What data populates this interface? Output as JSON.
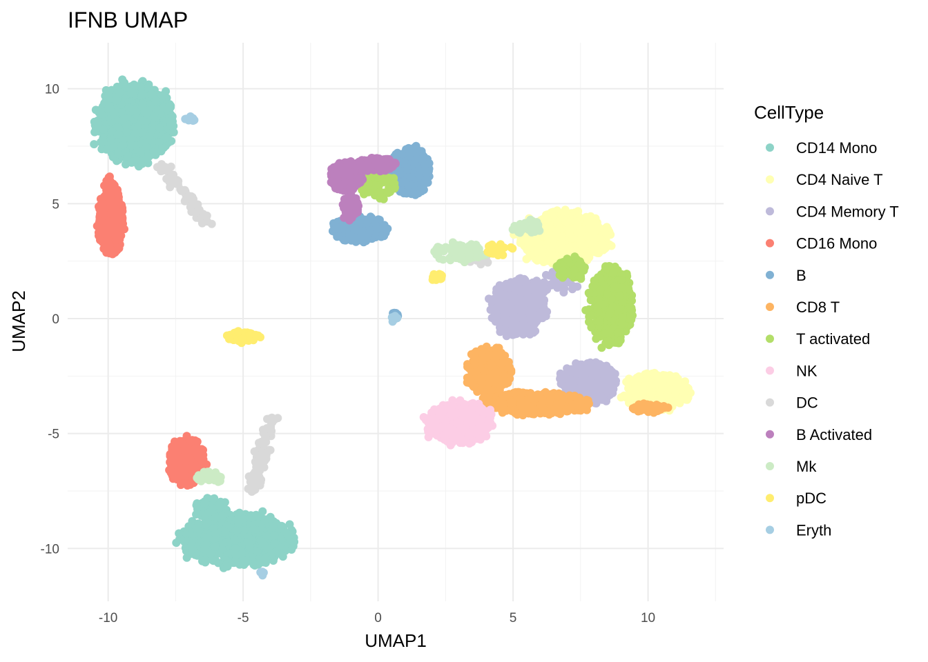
{
  "chart_data": {
    "type": "scatter",
    "title": "IFNB UMAP",
    "xlabel": "UMAP1",
    "ylabel": "UMAP2",
    "xlim": [
      -11.5,
      12.8
    ],
    "ylim": [
      -12.3,
      12.0
    ],
    "x_ticks": [
      -10,
      -5,
      0,
      5,
      10
    ],
    "y_ticks": [
      -10,
      -5,
      0,
      5,
      10
    ],
    "x_tick_labels": [
      "-10",
      "-5",
      "0",
      "5",
      "10"
    ],
    "y_tick_labels": [
      "-10",
      "-5",
      "0",
      "5",
      "10"
    ],
    "grid": true,
    "legend": {
      "title": "CellType",
      "placement": "right"
    },
    "series": [
      {
        "name": "CD14 Mono",
        "color": "#8DD3C7",
        "clusters": [
          {
            "cx": -9.0,
            "cy": 8.5,
            "rx": 1.4,
            "ry": 1.7,
            "n": 900
          },
          {
            "cx": -5.2,
            "cy": -9.6,
            "rx": 2.0,
            "ry": 1.1,
            "n": 900
          },
          {
            "cx": -6.2,
            "cy": -8.3,
            "rx": 0.6,
            "ry": 0.5,
            "n": 60
          }
        ]
      },
      {
        "name": "CD4 Naive T",
        "color": "#FFFFB3",
        "clusters": [
          {
            "cx": 6.9,
            "cy": 3.5,
            "rx": 1.6,
            "ry": 1.1,
            "n": 600
          },
          {
            "cx": 10.3,
            "cy": -3.2,
            "rx": 1.2,
            "ry": 0.8,
            "n": 420
          },
          {
            "cx": -0.5,
            "cy": 3.6,
            "rx": 0.2,
            "ry": 0.2,
            "n": 10
          }
        ]
      },
      {
        "name": "CD4 Memory T",
        "color": "#BEBADA",
        "clusters": [
          {
            "cx": 5.2,
            "cy": 0.5,
            "rx": 1.0,
            "ry": 1.2,
            "n": 460
          },
          {
            "cx": 7.8,
            "cy": -2.8,
            "rx": 1.0,
            "ry": 0.9,
            "n": 420
          },
          {
            "cx": 6.4,
            "cy": 1.5,
            "rx": 0.9,
            "ry": 0.5,
            "n": 40
          }
        ]
      },
      {
        "name": "CD16 Mono",
        "color": "#FB8072",
        "clusters": [
          {
            "cx": -9.9,
            "cy": 4.3,
            "rx": 0.45,
            "ry": 1.5,
            "n": 380
          },
          {
            "cx": -7.1,
            "cy": -6.2,
            "rx": 0.65,
            "ry": 1.0,
            "n": 280
          },
          {
            "cx": -10.0,
            "cy": 5.9,
            "rx": 0.2,
            "ry": 0.3,
            "n": 15
          }
        ]
      },
      {
        "name": "B",
        "color": "#80B1D3",
        "clusters": [
          {
            "cx": 1.2,
            "cy": 6.4,
            "rx": 0.7,
            "ry": 1.0,
            "n": 360
          },
          {
            "cx": -0.7,
            "cy": 3.9,
            "rx": 1.0,
            "ry": 0.55,
            "n": 320
          },
          {
            "cx": 0.6,
            "cy": 0.1,
            "rx": 0.15,
            "ry": 0.15,
            "n": 10
          },
          {
            "cx": -10.0,
            "cy": 9.0,
            "rx": 0.2,
            "ry": 0.2,
            "n": 0
          }
        ]
      },
      {
        "name": "CD8 T",
        "color": "#FDB462",
        "clusters": [
          {
            "cx": 4.1,
            "cy": -2.3,
            "rx": 0.8,
            "ry": 1.0,
            "n": 320
          },
          {
            "cx": 5.8,
            "cy": -3.7,
            "rx": 1.9,
            "ry": 0.5,
            "n": 360
          },
          {
            "cx": 10.0,
            "cy": -3.9,
            "rx": 0.7,
            "ry": 0.2,
            "n": 40
          }
        ]
      },
      {
        "name": "T activated",
        "color": "#B3DE69",
        "clusters": [
          {
            "cx": 8.6,
            "cy": 0.6,
            "rx": 0.8,
            "ry": 1.7,
            "n": 460
          },
          {
            "cx": 0.0,
            "cy": 5.8,
            "rx": 0.7,
            "ry": 0.6,
            "n": 80
          },
          {
            "cx": 7.2,
            "cy": 2.2,
            "rx": 0.6,
            "ry": 0.5,
            "n": 60
          }
        ]
      },
      {
        "name": "NK",
        "color": "#FCCDE5",
        "clusters": [
          {
            "cx": 3.0,
            "cy": -4.5,
            "rx": 1.2,
            "ry": 0.9,
            "n": 420
          }
        ]
      },
      {
        "name": "DC",
        "color": "#D9D9D9",
        "clusters": [
          {
            "cx": -7.5,
            "cy": 6.2,
            "rx": 1.2,
            "ry": 0.6,
            "n": 60,
            "line": [
              -8.2,
              6.8,
              -6.3,
              4.2
            ]
          },
          {
            "cx": -4.2,
            "cy": -6.8,
            "rx": 0.3,
            "ry": 1.6,
            "n": 90,
            "line": [
              -4.7,
              -7.6,
              -3.9,
              -4.3
            ]
          },
          {
            "cx": 3.6,
            "cy": 2.6,
            "rx": 0.6,
            "ry": 0.3,
            "n": 20
          }
        ]
      },
      {
        "name": "B Activated",
        "color": "#BC80BD",
        "clusters": [
          {
            "cx": -1.2,
            "cy": 6.2,
            "rx": 0.6,
            "ry": 0.6,
            "n": 240
          },
          {
            "cx": -0.1,
            "cy": 6.7,
            "rx": 0.7,
            "ry": 0.3,
            "n": 120
          },
          {
            "cx": -1.0,
            "cy": 4.8,
            "rx": 0.3,
            "ry": 0.5,
            "n": 60
          }
        ]
      },
      {
        "name": "Mk",
        "color": "#CCEBC5",
        "clusters": [
          {
            "cx": 3.0,
            "cy": 2.9,
            "rx": 0.9,
            "ry": 0.4,
            "n": 90
          },
          {
            "cx": -6.2,
            "cy": -6.9,
            "rx": 0.5,
            "ry": 0.3,
            "n": 30
          },
          {
            "cx": 5.5,
            "cy": 4.0,
            "rx": 0.6,
            "ry": 0.3,
            "n": 40
          }
        ]
      },
      {
        "name": "pDC",
        "color": "#FFED6F",
        "clusters": [
          {
            "cx": -5.0,
            "cy": -0.8,
            "rx": 0.6,
            "ry": 0.25,
            "n": 80
          },
          {
            "cx": 2.2,
            "cy": 1.8,
            "rx": 0.25,
            "ry": 0.15,
            "n": 15
          },
          {
            "cx": 4.5,
            "cy": 3.0,
            "rx": 0.5,
            "ry": 0.3,
            "n": 20
          }
        ]
      },
      {
        "name": "Eryth",
        "color": "#A6CEE3",
        "clusters": [
          {
            "cx": -7.0,
            "cy": 8.7,
            "rx": 0.2,
            "ry": 0.15,
            "n": 10
          },
          {
            "cx": -4.3,
            "cy": -11.1,
            "rx": 0.1,
            "ry": 0.1,
            "n": 4
          },
          {
            "cx": 0.6,
            "cy": 0.0,
            "rx": 0.12,
            "ry": 0.15,
            "n": 10
          }
        ]
      }
    ]
  }
}
